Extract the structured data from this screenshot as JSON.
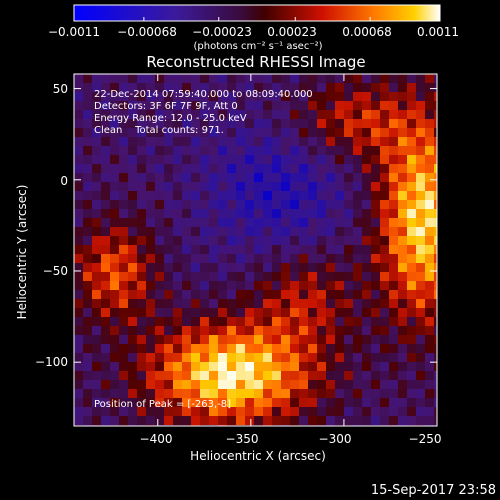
{
  "chart_data": {
    "type": "heatmap",
    "title": "Reconstructed RHESSI Image",
    "xlabel": "Heliocentric X (arcsec)",
    "ylabel": "Heliocentric Y (arcsec)",
    "xlim": [
      -445,
      -250
    ],
    "ylim": [
      -135,
      58
    ],
    "xticks": [
      -400,
      -350,
      -300,
      -250
    ],
    "xtick_labels": [
      "−400",
      "−350",
      "−300",
      "−250"
    ],
    "yticks": [
      50,
      0,
      -50,
      -100
    ],
    "ytick_labels": [
      "50",
      "0",
      "−50",
      "−100"
    ],
    "colorbar": {
      "range": [
        -0.0011,
        0.0011
      ],
      "ticks": [
        -0.0011,
        -0.00068,
        -0.00023,
        0.00023,
        0.00068,
        0.0011
      ],
      "tick_labels": [
        "−0.0011",
        "−0.00068",
        "−0.00023",
        "0.00023",
        "0.00068",
        "0.0011"
      ],
      "unit_label": "(photons cm⁻² s⁻¹ asec⁻²)"
    },
    "annotations": [
      "22-Dec-2014 07:59:40.000 to 08:09:40.000",
      "Detectors: 3F 6F 7F 9F, Att 0",
      "Energy Range: 12.0 - 25.0 keV",
      "Clean    Total counts: 971."
    ],
    "peak_label": "Position of Peak = [-263,-8]",
    "peak": [
      -263,
      -8
    ]
  },
  "footer": {
    "timestamp": "15-Sep-2017 23:58"
  }
}
